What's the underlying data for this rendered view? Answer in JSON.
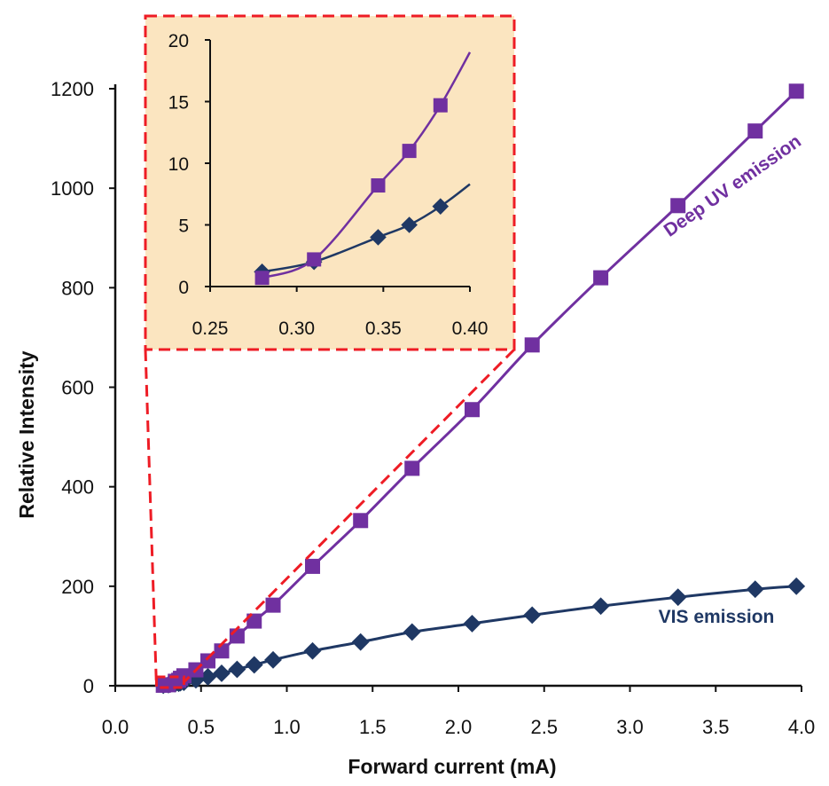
{
  "chart_data": [
    {
      "type": "line",
      "xlabel": "Forward current (mA)",
      "ylabel": "Relative Intensity",
      "xlim": [
        0.0,
        4.0
      ],
      "ylim": [
        0,
        1200
      ],
      "x_ticks": [
        "0.0",
        "0.5",
        "1.0",
        "1.5",
        "2.0",
        "2.5",
        "3.0",
        "3.5",
        "4.0"
      ],
      "y_ticks": [
        "0",
        "200",
        "400",
        "600",
        "800",
        "1000",
        "1200"
      ],
      "grid": false,
      "series": [
        {
          "name": "Deep UV emission",
          "color": "#7030a0",
          "marker": "square",
          "x": [
            0.28,
            0.31,
            0.35,
            0.37,
            0.38,
            0.4,
            0.47,
            0.54,
            0.62,
            0.71,
            0.81,
            0.92,
            1.15,
            1.43,
            1.73,
            2.08,
            2.43,
            2.83,
            3.28,
            3.73,
            3.97
          ],
          "y": [
            1,
            2,
            9,
            11,
            15,
            20,
            32,
            50,
            70,
            100,
            130,
            162,
            240,
            332,
            437,
            555,
            685,
            820,
            965,
            1115,
            1195
          ]
        },
        {
          "name": "VIS emission",
          "color": "#1f3864",
          "marker": "diamond",
          "x": [
            0.28,
            0.31,
            0.35,
            0.37,
            0.38,
            0.4,
            0.47,
            0.54,
            0.62,
            0.71,
            0.81,
            0.92,
            1.15,
            1.43,
            1.73,
            2.08,
            2.43,
            2.83,
            3.28,
            3.73,
            3.97
          ],
          "y": [
            1,
            2,
            4,
            5,
            6,
            7,
            12,
            18,
            25,
            33,
            42,
            52,
            70,
            88,
            108,
            125,
            142,
            160,
            178,
            194,
            200
          ]
        }
      ]
    },
    {
      "type": "line",
      "title": "",
      "xlim": [
        0.25,
        0.4
      ],
      "ylim": [
        0,
        20
      ],
      "x_ticks": [
        "0.25",
        "0.30",
        "0.35",
        "0.40"
      ],
      "y_ticks": [
        "0",
        "5",
        "10",
        "15",
        "20"
      ],
      "grid": false,
      "background": "#fbe5c0",
      "border_color": "#ee1c25",
      "series": [
        {
          "name": "Deep UV emission",
          "color": "#7030a0",
          "marker": "square",
          "x": [
            0.28,
            0.31,
            0.347,
            0.365,
            0.383
          ],
          "y": [
            0.7,
            2.2,
            8.2,
            11.0,
            14.7
          ],
          "curve_end": [
            0.4,
            19.0
          ]
        },
        {
          "name": "VIS emission",
          "color": "#1f3864",
          "marker": "diamond",
          "x": [
            0.28,
            0.31,
            0.347,
            0.365,
            0.383
          ],
          "y": [
            1.2,
            2.0,
            4.0,
            5.0,
            6.5
          ],
          "curve_end": [
            0.4,
            8.3
          ]
        }
      ]
    }
  ]
}
